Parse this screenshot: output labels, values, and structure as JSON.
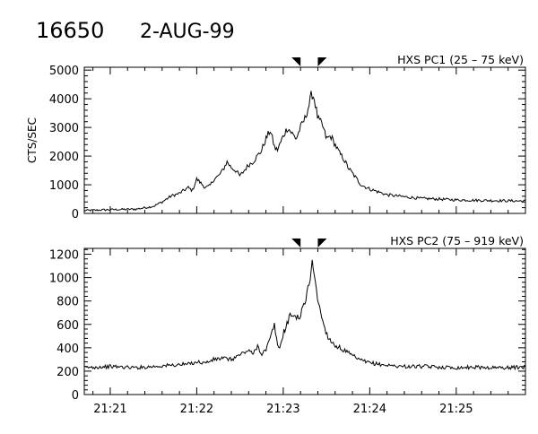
{
  "header": {
    "event_id": "16650",
    "date": "2-AUG-99"
  },
  "chart_data": [
    {
      "type": "line",
      "title": "HXS PC1 (25 – 75 keV)",
      "ylabel": "CTS/SEC",
      "xlim": [
        "21:20.7",
        "21:25.8"
      ],
      "ylim": [
        0,
        5100
      ],
      "yticks": [
        0,
        1000,
        2000,
        3000,
        4000,
        5000
      ],
      "xticks": [
        "21:21",
        "21:22",
        "21:23",
        "21:24",
        "21:25"
      ],
      "xtick_labels_shown": false,
      "markers": [
        {
          "shape": "triangle-down-left",
          "x": "21:23.2"
        },
        {
          "shape": "triangle-down-right",
          "x": "21:23.4"
        }
      ],
      "series": [
        {
          "x_minutes_after_2100": [
            20.7,
            21.0,
            21.3,
            21.5,
            21.6,
            21.7,
            21.8,
            21.9,
            21.95,
            22.0,
            22.05,
            22.1,
            22.15,
            22.2,
            22.25,
            22.3,
            22.35,
            22.4,
            22.45,
            22.5,
            22.55,
            22.6,
            22.65,
            22.7,
            22.75,
            22.8,
            22.85,
            22.9,
            22.93,
            22.96,
            23.0,
            23.05,
            23.1,
            23.15,
            23.2,
            23.25,
            23.3,
            23.33,
            23.36,
            23.4,
            23.45,
            23.5,
            23.55,
            23.6,
            23.65,
            23.7,
            23.75,
            23.8,
            23.85,
            23.9,
            24.0,
            24.1,
            24.2,
            24.4,
            24.6,
            24.8,
            25.0,
            25.2,
            25.4,
            25.6,
            25.8
          ],
          "values": [
            100,
            130,
            150,
            250,
            400,
            600,
            700,
            900,
            800,
            1200,
            1050,
            900,
            950,
            1200,
            1300,
            1500,
            1800,
            1600,
            1500,
            1300,
            1500,
            1700,
            1800,
            2000,
            2200,
            2600,
            2900,
            2300,
            2200,
            2400,
            2700,
            3000,
            2800,
            2600,
            3000,
            3300,
            3800,
            4200,
            4000,
            3300,
            3100,
            2600,
            2700,
            2400,
            2100,
            1900,
            1600,
            1400,
            1200,
            1000,
            850,
            750,
            650,
            580,
            520,
            500,
            470,
            460,
            450,
            440,
            430
          ]
        }
      ]
    },
    {
      "type": "line",
      "title": "HXS PC2 (75 – 919 keV)",
      "ylabel": "",
      "xlim": [
        "21:20.7",
        "21:25.8"
      ],
      "ylim": [
        0,
        1250
      ],
      "yticks": [
        0,
        200,
        400,
        600,
        800,
        1000,
        1200
      ],
      "xticks": [
        "21:21",
        "21:22",
        "21:23",
        "21:24",
        "21:25"
      ],
      "xtick_labels_shown": true,
      "markers": [
        {
          "shape": "triangle-down-left",
          "x": "21:23.2"
        },
        {
          "shape": "triangle-down-right",
          "x": "21:23.4"
        }
      ],
      "series": [
        {
          "x_minutes_after_2100": [
            20.7,
            21.0,
            21.3,
            21.5,
            21.7,
            21.9,
            22.0,
            22.1,
            22.2,
            22.3,
            22.4,
            22.5,
            22.55,
            22.6,
            22.65,
            22.7,
            22.75,
            22.8,
            22.85,
            22.9,
            22.93,
            22.96,
            23.0,
            23.05,
            23.1,
            23.15,
            23.2,
            23.25,
            23.3,
            23.33,
            23.36,
            23.4,
            23.45,
            23.5,
            23.55,
            23.6,
            23.7,
            23.8,
            23.9,
            24.0,
            24.2,
            24.4,
            24.6,
            24.8,
            25.0,
            25.2,
            25.4,
            25.6,
            25.8
          ],
          "values": [
            230,
            240,
            230,
            240,
            250,
            260,
            280,
            270,
            300,
            310,
            300,
            340,
            360,
            380,
            340,
            420,
            350,
            380,
            480,
            600,
            420,
            400,
            520,
            620,
            700,
            650,
            680,
            780,
            950,
            1120,
            1050,
            800,
            650,
            520,
            460,
            420,
            380,
            330,
            290,
            270,
            250,
            240,
            240,
            235,
            230,
            235,
            230,
            230,
            235
          ]
        }
      ]
    }
  ]
}
